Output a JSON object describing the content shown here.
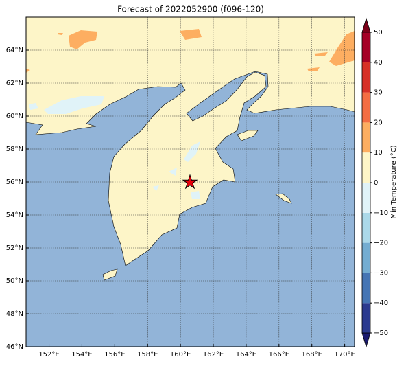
{
  "title": "Forecast of 2022052900 (f096-120)",
  "map": {
    "xlim": [
      150.6,
      170.6
    ],
    "ylim": [
      46,
      66
    ],
    "xticks": [
      {
        "value": 152,
        "label": "152°E"
      },
      {
        "value": 154,
        "label": "154°E"
      },
      {
        "value": 156,
        "label": "156°E"
      },
      {
        "value": 158,
        "label": "158°E"
      },
      {
        "value": 160,
        "label": "160°E"
      },
      {
        "value": 162,
        "label": "162°E"
      },
      {
        "value": 164,
        "label": "164°E"
      },
      {
        "value": 166,
        "label": "166°E"
      },
      {
        "value": 168,
        "label": "168°E"
      },
      {
        "value": 170,
        "label": "170°E"
      }
    ],
    "yticks": [
      {
        "value": 46,
        "label": "46°N"
      },
      {
        "value": 48,
        "label": "48°N"
      },
      {
        "value": 50,
        "label": "50°N"
      },
      {
        "value": 52,
        "label": "52°N"
      },
      {
        "value": 54,
        "label": "54°N"
      },
      {
        "value": 56,
        "label": "56°N"
      },
      {
        "value": 58,
        "label": "58°N"
      },
      {
        "value": 60,
        "label": "60°N"
      },
      {
        "value": 62,
        "label": "62°N"
      },
      {
        "value": 64,
        "label": "64°N"
      }
    ],
    "grid": true
  },
  "colorbar": {
    "label": "Min Temperature (°C)",
    "ticks": [
      {
        "value": -50,
        "label": "−50"
      },
      {
        "value": -40,
        "label": "−40"
      },
      {
        "value": -30,
        "label": "−30"
      },
      {
        "value": -20,
        "label": "−20"
      },
      {
        "value": -10,
        "label": "−10"
      },
      0,
      10,
      20,
      30,
      40,
      50
    ],
    "colors": [
      "#2b3a8f",
      "#4575b4",
      "#74add1",
      "#abd9e9",
      "#e0f3f8",
      "#fef6c8",
      "#fdae61",
      "#f46d43",
      "#d73027",
      "#a50026"
    ],
    "under_color": "#1a1a6e",
    "over_color": "#7a0018"
  }
}
